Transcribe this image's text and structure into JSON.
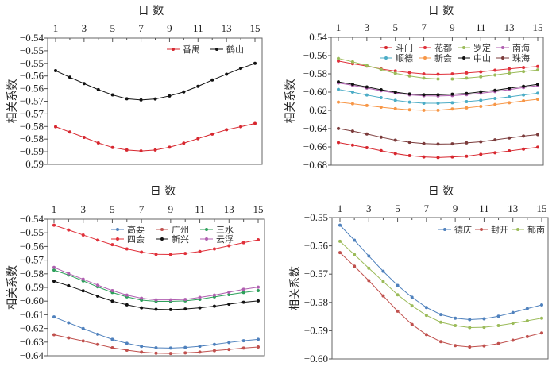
{
  "chart_data": [
    {
      "type": "line",
      "title": "日 数",
      "ylabel": "相关系数",
      "x": [
        1,
        2,
        3,
        4,
        5,
        6,
        7,
        8,
        9,
        10,
        11,
        12,
        13,
        14,
        15
      ],
      "xticks": [
        "1",
        "3",
        "5",
        "7",
        "9",
        "11",
        "13",
        "15"
      ],
      "xaxis_position": "top",
      "ylim": [
        -0.59,
        -0.54
      ],
      "yticks": [
        -0.54,
        -0.545,
        -0.55,
        -0.555,
        -0.56,
        -0.565,
        -0.57,
        -0.575,
        -0.58,
        -0.585,
        -0.59
      ],
      "ytick_labels": [
        "-0.54",
        "-0.55",
        "-0.55",
        "-0.56",
        "-0.56",
        "-0.57",
        "-0.57",
        "-0.58",
        "-0.58",
        "-0.59",
        "-0.59"
      ],
      "grid": false,
      "legend_position": "top-right",
      "legend_columns": 2,
      "series": [
        {
          "name": "番禺",
          "color": "#d7262e",
          "values": [
            -0.5751,
            -0.5772,
            -0.5793,
            -0.5815,
            -0.5833,
            -0.5843,
            -0.5847,
            -0.5843,
            -0.5832,
            -0.5816,
            -0.5798,
            -0.578,
            -0.5763,
            -0.5751,
            -0.5738
          ]
        },
        {
          "name": "鹤山",
          "color": "#111111",
          "values": [
            -0.5529,
            -0.5555,
            -0.558,
            -0.5604,
            -0.5625,
            -0.564,
            -0.5645,
            -0.5641,
            -0.5629,
            -0.5613,
            -0.5591,
            -0.5566,
            -0.5543,
            -0.552,
            -0.55
          ]
        }
      ]
    },
    {
      "type": "line",
      "title": "日 数",
      "ylabel": "相关系数",
      "x": [
        1,
        2,
        3,
        4,
        5,
        6,
        7,
        8,
        9,
        10,
        11,
        12,
        13,
        14,
        15
      ],
      "xticks": [
        "1",
        "3",
        "5",
        "7",
        "9",
        "11",
        "13",
        "15"
      ],
      "xaxis_position": "top",
      "ylim": [
        -0.68,
        -0.54
      ],
      "yticks": [
        -0.54,
        -0.56,
        -0.58,
        -0.6,
        -0.62,
        -0.64,
        -0.66,
        -0.68
      ],
      "ytick_labels": [
        "-0.54",
        "-0.56",
        "-0.58",
        "-0.60",
        "-0.62",
        "-0.64",
        "-0.66",
        "-0.68"
      ],
      "grid": false,
      "legend_position": "top",
      "legend_columns": 4,
      "series": [
        {
          "name": "斗门",
          "color": "#d7262e",
          "values": [
            -0.6552,
            -0.658,
            -0.6609,
            -0.6641,
            -0.6673,
            -0.6696,
            -0.671,
            -0.6716,
            -0.671,
            -0.6702,
            -0.6681,
            -0.6664,
            -0.6644,
            -0.6624,
            -0.6603
          ]
        },
        {
          "name": "花都",
          "color": "#e0303a",
          "values": [
            -0.566,
            -0.5689,
            -0.5715,
            -0.5747,
            -0.5769,
            -0.5787,
            -0.5801,
            -0.5804,
            -0.5801,
            -0.579,
            -0.5778,
            -0.5761,
            -0.5746,
            -0.5732,
            -0.572
          ]
        },
        {
          "name": "罗定",
          "color": "#9bbb59",
          "values": [
            -0.5631,
            -0.5668,
            -0.5709,
            -0.5752,
            -0.5795,
            -0.5824,
            -0.5847,
            -0.5856,
            -0.5856,
            -0.5847,
            -0.5833,
            -0.5813,
            -0.5792,
            -0.5775,
            -0.5758
          ]
        },
        {
          "name": "南海",
          "color": "#b05fb0",
          "values": [
            -0.59,
            -0.5925,
            -0.5955,
            -0.5985,
            -0.601,
            -0.603,
            -0.604,
            -0.6042,
            -0.6038,
            -0.6028,
            -0.6012,
            -0.5995,
            -0.5972,
            -0.595,
            -0.5928
          ]
        },
        {
          "name": "顺德",
          "color": "#4bacc6",
          "values": [
            -0.5971,
            -0.6,
            -0.6032,
            -0.6061,
            -0.609,
            -0.611,
            -0.6122,
            -0.6122,
            -0.6116,
            -0.6104,
            -0.609,
            -0.607,
            -0.6052,
            -0.6032,
            -0.6012
          ]
        },
        {
          "name": "新会",
          "color": "#f79646",
          "values": [
            -0.611,
            -0.6127,
            -0.6147,
            -0.6165,
            -0.6182,
            -0.6194,
            -0.6199,
            -0.6199,
            -0.6185,
            -0.6173,
            -0.6156,
            -0.6136,
            -0.6116,
            -0.6096,
            -0.6078
          ]
        },
        {
          "name": "中山",
          "color": "#111111",
          "values": [
            -0.5888,
            -0.5914,
            -0.5943,
            -0.5974,
            -0.6,
            -0.6021,
            -0.6029,
            -0.6029,
            -0.6023,
            -0.6015,
            -0.5997,
            -0.598,
            -0.5957,
            -0.5937,
            -0.5914
          ]
        },
        {
          "name": "珠海",
          "color": "#7b3b3b",
          "values": [
            -0.6399,
            -0.6427,
            -0.6459,
            -0.6494,
            -0.6526,
            -0.6549,
            -0.6563,
            -0.6569,
            -0.6566,
            -0.6555,
            -0.6543,
            -0.6523,
            -0.6502,
            -0.6482,
            -0.6465
          ]
        }
      ]
    },
    {
      "type": "line",
      "title": "日 数",
      "ylabel": "相关系数",
      "x": [
        1,
        2,
        3,
        4,
        5,
        6,
        7,
        8,
        9,
        10,
        11,
        12,
        13,
        14,
        15
      ],
      "xticks": [
        "1",
        "3",
        "5",
        "7",
        "9",
        "11",
        "13",
        "15"
      ],
      "xaxis_position": "top",
      "ylim": [
        -0.64,
        -0.54
      ],
      "yticks": [
        -0.54,
        -0.55,
        -0.56,
        -0.57,
        -0.58,
        -0.59,
        -0.6,
        -0.61,
        -0.62,
        -0.63,
        -0.64
      ],
      "ytick_labels": [
        "-0.54",
        "-0.55",
        "-0.56",
        "-0.57",
        "-0.58",
        "-0.59",
        "-0.60",
        "-0.61",
        "-0.62",
        "-0.63",
        "-0.64"
      ],
      "grid": false,
      "legend_position": "top",
      "legend_columns": 3,
      "series": [
        {
          "name": "高要",
          "color": "#4f81bd",
          "values": [
            -0.6116,
            -0.6159,
            -0.6201,
            -0.6242,
            -0.628,
            -0.6309,
            -0.6332,
            -0.6342,
            -0.6344,
            -0.634,
            -0.6331,
            -0.6317,
            -0.6303,
            -0.629,
            -0.628
          ]
        },
        {
          "name": "广州",
          "color": "#c0504d",
          "values": [
            -0.6246,
            -0.6269,
            -0.6292,
            -0.6317,
            -0.6342,
            -0.6359,
            -0.6373,
            -0.6381,
            -0.6383,
            -0.6379,
            -0.6373,
            -0.6363,
            -0.6354,
            -0.6344,
            -0.6336
          ]
        },
        {
          "name": "三水",
          "color": "#2ca05a",
          "values": [
            -0.5773,
            -0.5809,
            -0.5852,
            -0.5896,
            -0.5937,
            -0.5969,
            -0.5993,
            -0.6002,
            -0.6002,
            -0.5998,
            -0.5987,
            -0.5969,
            -0.5952,
            -0.5937,
            -0.5923
          ]
        },
        {
          "name": "四会",
          "color": "#e0303a",
          "values": [
            -0.5444,
            -0.5479,
            -0.5516,
            -0.5553,
            -0.5587,
            -0.5618,
            -0.5641,
            -0.5657,
            -0.5659,
            -0.5651,
            -0.5637,
            -0.5618,
            -0.5595,
            -0.5572,
            -0.5551
          ]
        },
        {
          "name": "新兴",
          "color": "#111111",
          "values": [
            -0.5854,
            -0.5888,
            -0.5925,
            -0.5964,
            -0.6,
            -0.6027,
            -0.6049,
            -0.606,
            -0.6062,
            -0.6058,
            -0.6049,
            -0.6037,
            -0.6022,
            -0.6008,
            -0.5998
          ]
        },
        {
          "name": "云浮",
          "color": "#b05fb0",
          "values": [
            -0.5753,
            -0.5798,
            -0.584,
            -0.5883,
            -0.5923,
            -0.5956,
            -0.5979,
            -0.5991,
            -0.5991,
            -0.5988,
            -0.5973,
            -0.5956,
            -0.5935,
            -0.5914,
            -0.5898
          ]
        }
      ]
    },
    {
      "type": "line",
      "title": "日 数",
      "ylabel": "相关系数",
      "x": [
        1,
        2,
        3,
        4,
        5,
        6,
        7,
        8,
        9,
        10,
        11,
        12,
        13,
        14,
        15
      ],
      "xticks": [
        "1",
        "3",
        "5",
        "7",
        "9",
        "11",
        "13",
        "15"
      ],
      "xaxis_position": "top",
      "ylim": [
        -0.6,
        -0.55
      ],
      "yticks": [
        -0.55,
        -0.56,
        -0.57,
        -0.58,
        -0.59,
        -0.6
      ],
      "ytick_labels": [
        "-0.55",
        "-0.56",
        "-0.57",
        "-0.58",
        "-0.59",
        "-0.60"
      ],
      "grid": false,
      "legend_position": "top-right",
      "legend_columns": 3,
      "series": [
        {
          "name": "德庆",
          "color": "#4f81bd",
          "values": [
            -0.5527,
            -0.558,
            -0.5636,
            -0.569,
            -0.574,
            -0.5782,
            -0.5818,
            -0.5843,
            -0.5856,
            -0.5861,
            -0.5858,
            -0.5849,
            -0.5836,
            -0.5822,
            -0.5809
          ]
        },
        {
          "name": "封开",
          "color": "#c0504d",
          "values": [
            -0.5624,
            -0.5672,
            -0.5723,
            -0.5777,
            -0.5831,
            -0.5878,
            -0.5914,
            -0.5939,
            -0.5953,
            -0.5958,
            -0.5954,
            -0.5946,
            -0.5934,
            -0.5921,
            -0.5908
          ]
        },
        {
          "name": "郁南",
          "color": "#9bbb59",
          "values": [
            -0.5584,
            -0.5631,
            -0.5679,
            -0.5726,
            -0.5773,
            -0.5812,
            -0.5846,
            -0.587,
            -0.5882,
            -0.5889,
            -0.5888,
            -0.5882,
            -0.5874,
            -0.5865,
            -0.5856
          ]
        }
      ]
    }
  ]
}
